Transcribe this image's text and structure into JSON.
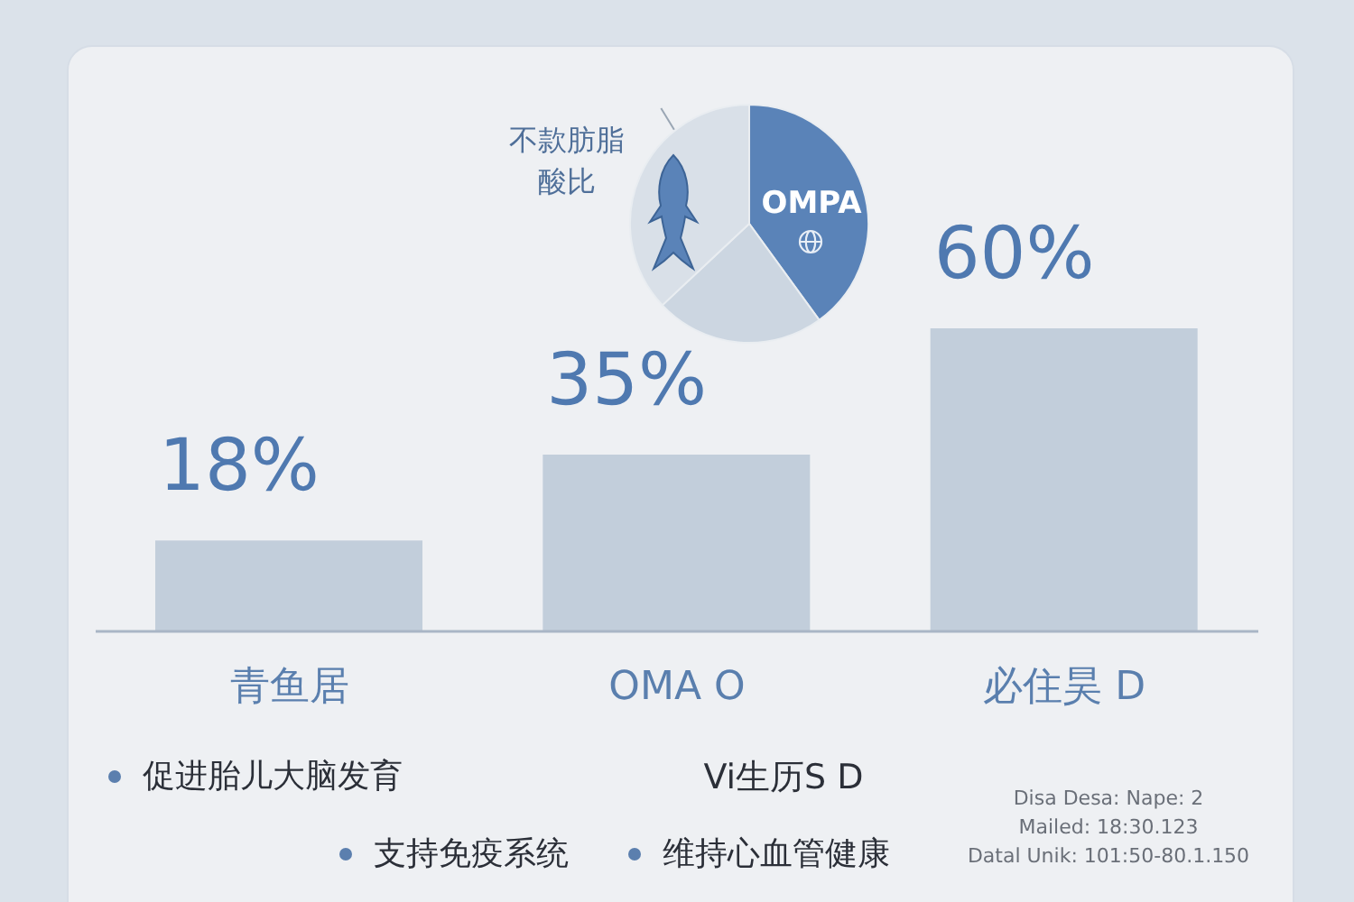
{
  "chart_data": [
    {
      "type": "bar",
      "categories": [
        "青鱼居",
        "OMA O",
        "必住昊 D"
      ],
      "values": [
        18,
        35,
        60
      ],
      "color": "#c2cedb",
      "value_labels": [
        "18%",
        "35%",
        "60%"
      ],
      "tick_labels": "x",
      "annotations": [
        "促进胎儿大脑发育",
        "Vi生历S D",
        "支持免疫系统",
        "维持心血管健康",
        "Disa Desa: Nape: 2",
        "Mailed: 18:30.123",
        "Datal Unik: 101:50-80.1.150"
      ]
    },
    {
      "type": "pie",
      "categories": [
        "OMPA",
        null,
        "不款肪脂酸比"
      ],
      "values": [
        40,
        23,
        37
      ],
      "colors": [
        "#5a83b8",
        "#ccd6e1",
        "#d9e0e8"
      ]
    }
  ]
}
